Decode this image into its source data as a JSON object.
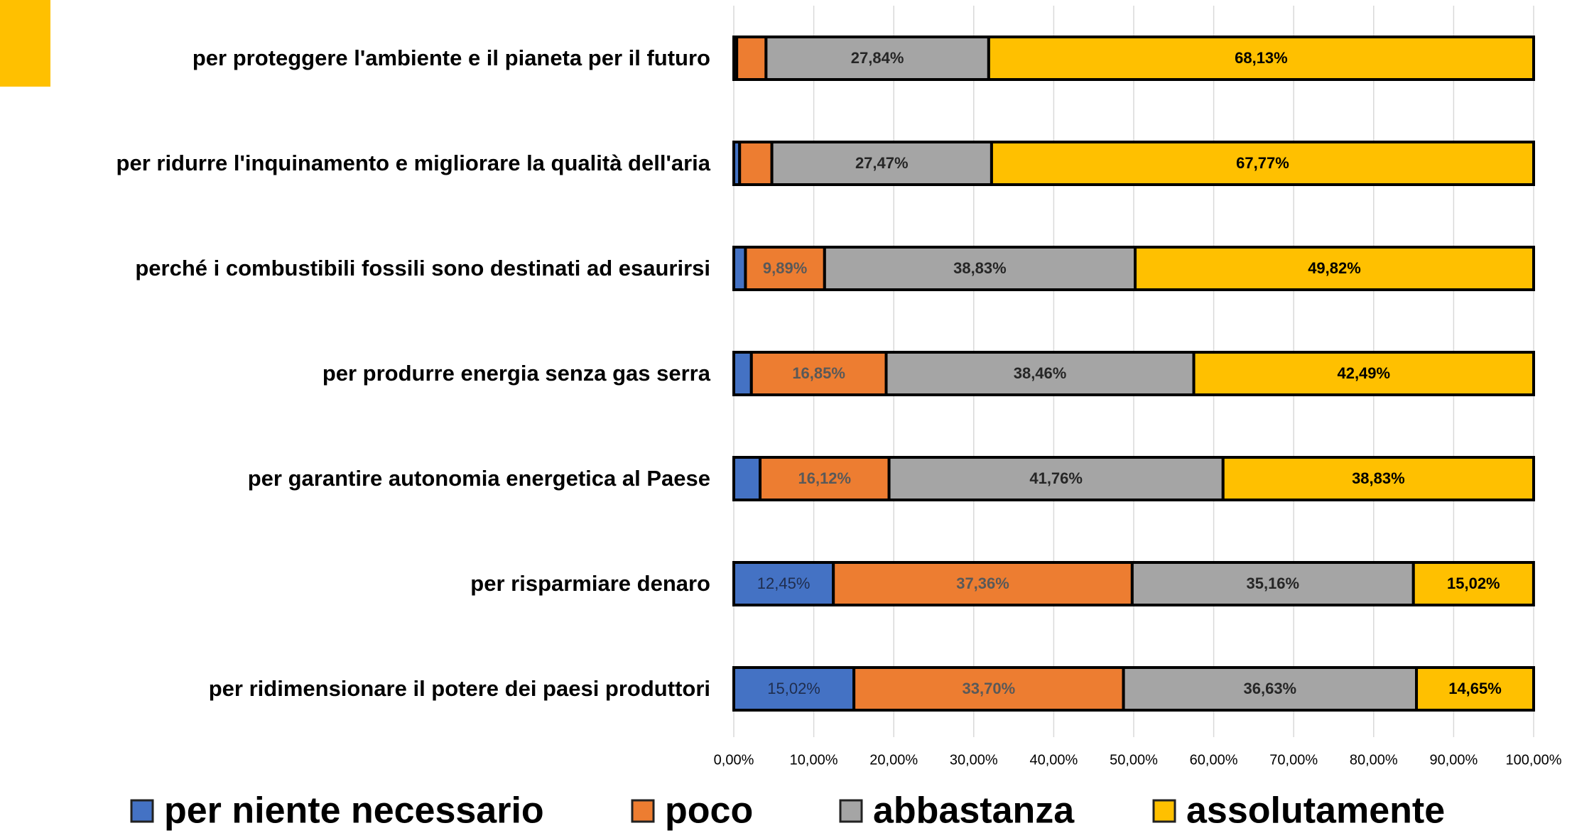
{
  "chart_data": {
    "type": "stacked-bar-horizontal",
    "categories": [
      "per proteggere l'ambiente e il pianeta per il futuro",
      "per ridurre l'inquinamento e migliorare la qualità dell'aria",
      "perché i combustibili fossili sono destinati ad esaurirsi",
      "per produrre energia senza gas serra",
      "per garantire autonomia energetica al Paese",
      "per risparmiare denaro",
      "per ridimensionare il potere dei paesi produttori"
    ],
    "series": [
      {
        "name": "per niente necessario",
        "color": "#4472c4",
        "values": [
          0.37,
          0.73,
          1.46,
          2.2,
          3.29,
          12.45,
          15.02
        ],
        "value_labels": [
          null,
          null,
          null,
          null,
          null,
          "12,45%",
          "15,02%"
        ]
      },
      {
        "name": "poco",
        "color": "#ed7d31",
        "values": [
          3.66,
          4.03,
          9.89,
          16.85,
          16.12,
          37.36,
          33.7
        ],
        "value_labels": [
          null,
          null,
          "9,89%",
          "16,85%",
          "16,12%",
          "37,36%",
          "33,70%"
        ]
      },
      {
        "name": "abbastanza",
        "color": "#a5a5a5",
        "values": [
          27.84,
          27.47,
          38.83,
          38.46,
          41.76,
          35.16,
          36.63
        ],
        "value_labels": [
          "27,84%",
          "27,47%",
          "38,83%",
          "38,46%",
          "41,76%",
          "35,16%",
          "36,63%"
        ]
      },
      {
        "name": "assolutamente",
        "color": "#ffc000",
        "values": [
          68.13,
          67.77,
          49.82,
          42.49,
          38.83,
          15.02,
          14.65
        ],
        "value_labels": [
          "68,13%",
          "67,77%",
          "49,82%",
          "42,49%",
          "38,83%",
          "15,02%",
          "14,65%"
        ]
      }
    ],
    "xlim": [
      0,
      100
    ],
    "xticks": [
      {
        "value": 0,
        "label": "0,00%"
      },
      {
        "value": 10,
        "label": "10,00%"
      },
      {
        "value": 20,
        "label": "20,00%"
      },
      {
        "value": 30,
        "label": "30,00%"
      },
      {
        "value": 40,
        "label": "40,00%"
      },
      {
        "value": 50,
        "label": "50,00%"
      },
      {
        "value": 60,
        "label": "60,00%"
      },
      {
        "value": 70,
        "label": "70,00%"
      },
      {
        "value": 80,
        "label": "80,00%"
      },
      {
        "value": 90,
        "label": "90,00%"
      },
      {
        "value": 100,
        "label": "100,00%"
      }
    ],
    "grid": true,
    "legend": "bottom"
  }
}
